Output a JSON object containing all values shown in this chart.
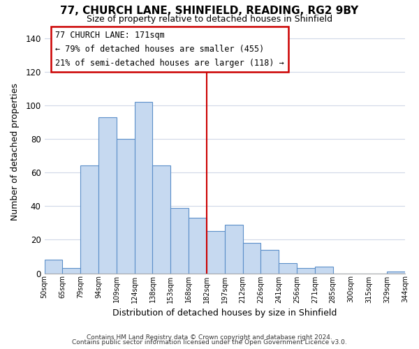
{
  "title": "77, CHURCH LANE, SHINFIELD, READING, RG2 9BY",
  "subtitle": "Size of property relative to detached houses in Shinfield",
  "xlabel": "Distribution of detached houses by size in Shinfield",
  "ylabel": "Number of detached properties",
  "bar_labels": [
    "50sqm",
    "65sqm",
    "79sqm",
    "94sqm",
    "109sqm",
    "124sqm",
    "138sqm",
    "153sqm",
    "168sqm",
    "182sqm",
    "197sqm",
    "212sqm",
    "226sqm",
    "241sqm",
    "256sqm",
    "271sqm",
    "285sqm",
    "300sqm",
    "315sqm",
    "329sqm",
    "344sqm"
  ],
  "bar_values": [
    8,
    3,
    64,
    93,
    80,
    102,
    64,
    39,
    33,
    25,
    29,
    18,
    14,
    6,
    3,
    4,
    0,
    0,
    0,
    1
  ],
  "bar_color": "#c6d9f0",
  "bar_edge_color": "#5b8fc9",
  "vline_color": "#cc0000",
  "ylim": [
    0,
    145
  ],
  "yticks": [
    0,
    20,
    40,
    60,
    80,
    100,
    120,
    140
  ],
  "annotation_title": "77 CHURCH LANE: 171sqm",
  "annotation_line1": "← 79% of detached houses are smaller (455)",
  "annotation_line2": "21% of semi-detached houses are larger (118) →",
  "footer_line1": "Contains HM Land Registry data © Crown copyright and database right 2024.",
  "footer_line2": "Contains public sector information licensed under the Open Government Licence v3.0.",
  "background_color": "#ffffff",
  "grid_color": "#d0d8e8"
}
